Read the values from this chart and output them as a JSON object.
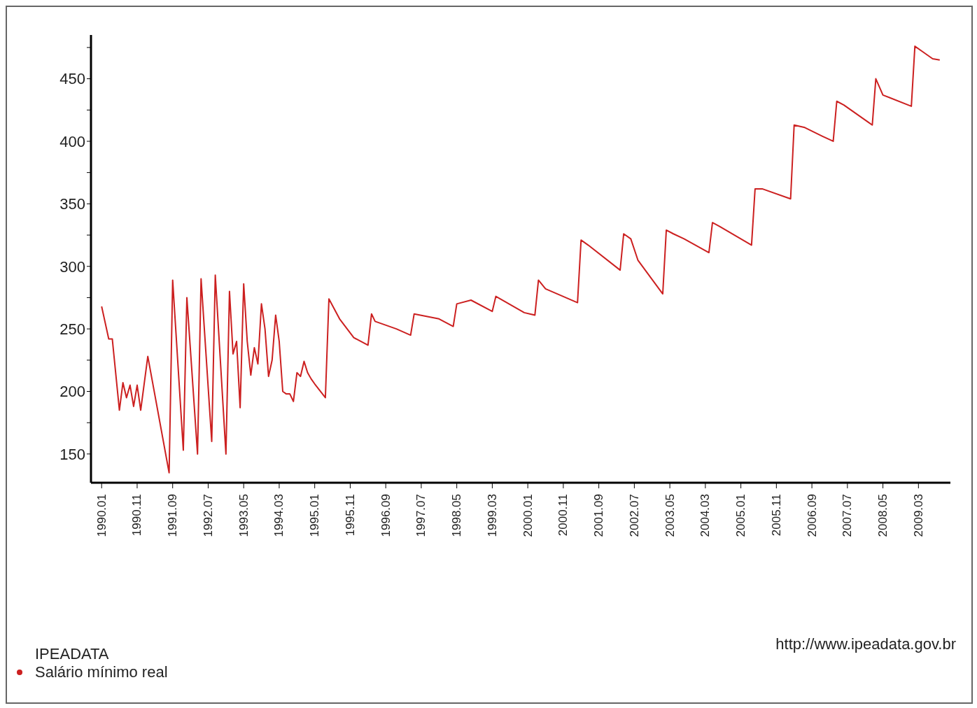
{
  "chart_data": {
    "type": "line",
    "legend_title": "IPEADATA",
    "legend": "bottom left",
    "marker": "none",
    "line_style": "solid",
    "annotations": [
      "http://www.ipeadata.gov.br"
    ],
    "xlim": [
      "1989-10",
      "2009-12"
    ],
    "xticks": [
      {
        "value": "1990-01",
        "label": "1990.01"
      },
      {
        "value": "1990-11",
        "label": "1990.11"
      },
      {
        "value": "1991-09",
        "label": "1991.09"
      },
      {
        "value": "1992-07",
        "label": "1992.07"
      },
      {
        "value": "1993-05",
        "label": "1993.05"
      },
      {
        "value": "1994-03",
        "label": "1994.03"
      },
      {
        "value": "1995-01",
        "label": "1995.01"
      },
      {
        "value": "1995-11",
        "label": "1995.11"
      },
      {
        "value": "1996-09",
        "label": "1996.09"
      },
      {
        "value": "1997-07",
        "label": "1997.07"
      },
      {
        "value": "1998-05",
        "label": "1998.05"
      },
      {
        "value": "1999-03",
        "label": "1999.03"
      },
      {
        "value": "2000-01",
        "label": "2000.01"
      },
      {
        "value": "2000-11",
        "label": "2000.11"
      },
      {
        "value": "2001-09",
        "label": "2001.09"
      },
      {
        "value": "2002-07",
        "label": "2002.07"
      },
      {
        "value": "2003-05",
        "label": "2003.05"
      },
      {
        "value": "2004-03",
        "label": "2004.03"
      },
      {
        "value": "2005-01",
        "label": "2005.01"
      },
      {
        "value": "2005-11",
        "label": "2005.11"
      },
      {
        "value": "2006-09",
        "label": "2006.09"
      },
      {
        "value": "2007-07",
        "label": "2007.07"
      },
      {
        "value": "2008-05",
        "label": "2008.05"
      },
      {
        "value": "2009-03",
        "label": "2009.03"
      }
    ],
    "ylim": [
      127,
      485
    ],
    "yticks": [
      150,
      {
        "value": 175,
        "label": null
      },
      200,
      {
        "value": 225,
        "label": null
      },
      250,
      {
        "value": 275,
        "label": null
      },
      300,
      {
        "value": 325,
        "label": null
      },
      350,
      {
        "value": 375,
        "label": null
      },
      400,
      {
        "value": 425,
        "label": null
      },
      450,
      {
        "value": 475,
        "label": null
      }
    ],
    "x": [
      "1990-01",
      "1990-02",
      "1990-03",
      "1990-04",
      "1990-06",
      "1990-07",
      "1990-08",
      "1990-09",
      "1990-10",
      "1990-11",
      "1990-12",
      "1991-02",
      "1991-08",
      "1991-09",
      "1991-12",
      "1992-01",
      "1992-04",
      "1992-05",
      "1992-08",
      "1992-09",
      "1992-12",
      "1993-01",
      "1993-02",
      "1993-03",
      "1993-04",
      "1993-05",
      "1993-06",
      "1993-07",
      "1993-08",
      "1993-09",
      "1993-10",
      "1993-11",
      "1993-12",
      "1994-01",
      "1994-02",
      "1994-03",
      "1994-04",
      "1994-05",
      "1994-06",
      "1994-07",
      "1994-08",
      "1994-09",
      "1994-10",
      "1994-11",
      "1994-12",
      "1995-01",
      "1995-04",
      "1995-05",
      "1995-08",
      "1995-12",
      "1996-04",
      "1996-05",
      "1996-06",
      "1996-12",
      "1997-04",
      "1997-05",
      "1997-12",
      "1998-04",
      "1998-05",
      "1998-09",
      "1999-03",
      "1999-04",
      "1999-12",
      "2000-03",
      "2000-04",
      "2000-06",
      "2001-03",
      "2001-04",
      "2001-06",
      "2002-03",
      "2002-04",
      "2002-06",
      "2002-08",
      "2003-03",
      "2003-04",
      "2003-06",
      "2003-09",
      "2004-04",
      "2004-05",
      "2004-07",
      "2005-04",
      "2005-05",
      "2005-07",
      "2006-03",
      "2006-04",
      "2006-07",
      "2006-12",
      "2007-03",
      "2007-04",
      "2007-06",
      "2008-01",
      "2008-02",
      "2008-03",
      "2008-05",
      "2009-01",
      "2009-02",
      "2009-04",
      "2009-07",
      "2009-09"
    ],
    "series": [
      {
        "name": "Salário mínimo real",
        "color": "#cc2020",
        "values": [
          268,
          255,
          242,
          242,
          185,
          207,
          195,
          205,
          188,
          205,
          185,
          228,
          135,
          289,
          153,
          275,
          150,
          290,
          160,
          293,
          150,
          280,
          230,
          240,
          187,
          286,
          240,
          213,
          235,
          222,
          270,
          250,
          212,
          225,
          261,
          240,
          200,
          198,
          198,
          192,
          215,
          212,
          224,
          215,
          210,
          206,
          195,
          274,
          258,
          243,
          237,
          262,
          256,
          250,
          245,
          262,
          258,
          252,
          270,
          273,
          264,
          276,
          263,
          261,
          289,
          282,
          271,
          321,
          317,
          297,
          326,
          322,
          305,
          278,
          329,
          326,
          322,
          311,
          335,
          332,
          317,
          362,
          362,
          354,
          413,
          411,
          404,
          400,
          432,
          429,
          415,
          413,
          450,
          437,
          428,
          476,
          472,
          466,
          465
        ]
      }
    ]
  }
}
